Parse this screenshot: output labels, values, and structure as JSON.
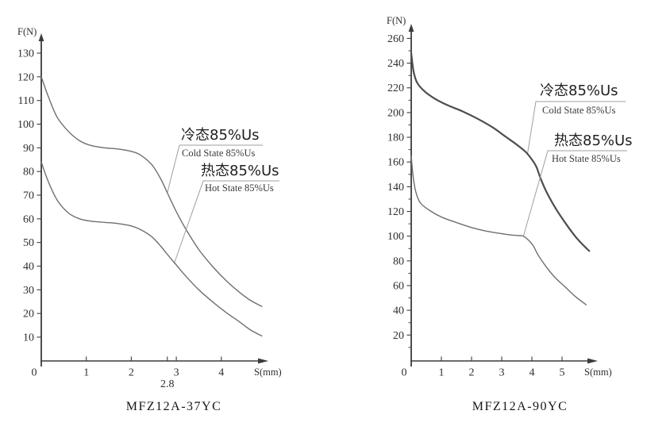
{
  "figure": {
    "background": "#ffffff",
    "axis_color": "#3b3b3b",
    "leader_color": "#9f9f9f"
  },
  "chart_data": [
    {
      "type": "line",
      "title": "MFZ12A-37YC",
      "ylabel": "F(N)",
      "xlabel": "S(mm)",
      "xlim": [
        0,
        5
      ],
      "ylim": [
        0,
        140
      ],
      "x_origin_label": "0",
      "y_ticks": [
        10,
        20,
        30,
        40,
        50,
        60,
        70,
        80,
        90,
        100,
        110,
        120,
        130
      ],
      "y_minor_ticks": [],
      "x_ticks": [
        1,
        2,
        3,
        4
      ],
      "special_x_ticks": [
        {
          "value": 2.8,
          "label": "2.8"
        }
      ],
      "grid": false,
      "legend_position": "upper-right-inside",
      "series": [
        {
          "name": "冷态85%Us",
          "name_en": "Cold State 85%Us",
          "color": "#6f6f6f",
          "width": 1.4,
          "s": [
            0,
            0.15,
            0.35,
            0.6,
            0.85,
            1.1,
            1.4,
            1.7,
            2.0,
            2.2,
            2.45,
            2.65,
            2.8,
            3.0,
            3.2,
            3.5,
            3.8,
            4.1,
            4.4,
            4.65,
            4.9
          ],
          "F": [
            120,
            112,
            103,
            97,
            93,
            91,
            90,
            89.5,
            88.5,
            87,
            83,
            77,
            71,
            63,
            56,
            47,
            40,
            34,
            29,
            25.5,
            23
          ],
          "annotation_target": {
            "s": 2.8,
            "F": 71
          }
        },
        {
          "name": "热态85%Us",
          "name_en": "Hot State 85%Us",
          "color": "#6f6f6f",
          "width": 1.4,
          "s": [
            0,
            0.15,
            0.35,
            0.6,
            0.85,
            1.1,
            1.4,
            1.7,
            2.0,
            2.2,
            2.45,
            2.65,
            2.8,
            3.0,
            3.2,
            3.5,
            3.8,
            4.1,
            4.4,
            4.65,
            4.9
          ],
          "F": [
            84,
            76,
            68,
            62.5,
            60,
            59,
            58.5,
            58,
            57,
            55.5,
            52.5,
            48.5,
            45,
            40.5,
            36,
            30,
            25,
            20.5,
            16.5,
            13,
            10.5
          ],
          "annotation_target": {
            "s": 2.95,
            "F": 41
          }
        }
      ]
    },
    {
      "type": "line",
      "title": "MFZ12A-90YC",
      "ylabel": "F(N)",
      "xlabel": "S(mm)",
      "xlim": [
        0,
        6
      ],
      "ylim": [
        0,
        270
      ],
      "x_origin_label": "0",
      "y_ticks": [
        20,
        40,
        60,
        80,
        100,
        120,
        140,
        160,
        180,
        200,
        220,
        240,
        260
      ],
      "y_minor_ticks": [
        10,
        30,
        50,
        70,
        90,
        110,
        130,
        150,
        170,
        190,
        210,
        230,
        250
      ],
      "x_ticks": [
        1,
        2,
        3,
        4,
        5
      ],
      "special_x_ticks": [],
      "grid": false,
      "legend_position": "upper-right-inside",
      "series": [
        {
          "name": "冷态85%Us",
          "name_en": "Cold State 85%Us",
          "color": "#4d4d4d",
          "width": 2.2,
          "s": [
            0,
            0.08,
            0.2,
            0.45,
            0.8,
            1.2,
            1.7,
            2.2,
            2.7,
            3.1,
            3.5,
            3.8,
            4.0,
            4.15,
            4.3,
            4.5,
            4.8,
            5.1,
            5.4,
            5.65,
            5.9
          ],
          "F": [
            248,
            233,
            224,
            217,
            211,
            206,
            201,
            195,
            188,
            181,
            174,
            168,
            162,
            156,
            146,
            135,
            122,
            111,
            101,
            94,
            88
          ],
          "annotation_target": {
            "s": 3.85,
            "F": 166
          }
        },
        {
          "name": "热态85%Us",
          "name_en": "Hot State 85%Us",
          "color": "#6f6f6f",
          "width": 1.4,
          "s": [
            0,
            0.06,
            0.15,
            0.3,
            0.6,
            1.0,
            1.5,
            2.0,
            2.5,
            3.0,
            3.3,
            3.55,
            3.72,
            3.9,
            4.05,
            4.2,
            4.45,
            4.75,
            5.1,
            5.45,
            5.8
          ],
          "F": [
            165,
            149,
            136,
            127,
            121,
            115.5,
            111,
            107,
            104,
            102,
            101,
            100.5,
            100,
            96.5,
            92,
            85,
            76,
            67,
            59,
            51,
            44.5
          ],
          "annotation_target": {
            "s": 3.72,
            "F": 100
          }
        }
      ]
    }
  ]
}
